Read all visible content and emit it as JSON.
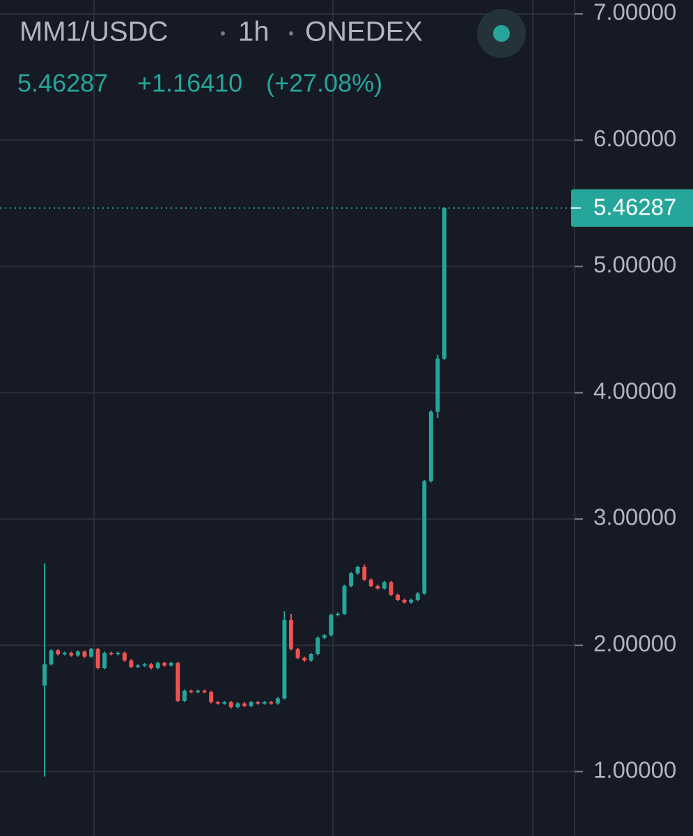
{
  "chart_data": {
    "type": "candlestick",
    "title": "MM1/USDC",
    "interval": "1h",
    "exchange": "ONEDEX",
    "last_price": 5.46287,
    "change": "+1.16410",
    "change_percent": "(+27.08%)",
    "up_color": "#26a69a",
    "down_color": "#ef5350",
    "grid": true,
    "ylim": [
      0.49,
      7.11
    ],
    "yticks": [
      {
        "value": 1,
        "label": "1.00000"
      },
      {
        "value": 2,
        "label": "2.00000"
      },
      {
        "value": 3,
        "label": "3.00000"
      },
      {
        "value": 4,
        "label": "4.00000"
      },
      {
        "value": 5,
        "label": "5.00000"
      },
      {
        "value": 6,
        "label": "6.00000"
      },
      {
        "value": 7,
        "label": "7.00000"
      }
    ],
    "open": [
      1.68,
      1.85,
      1.96,
      1.93,
      1.94,
      1.92,
      1.95,
      1.91,
      1.97,
      1.82,
      1.94,
      1.93,
      1.94,
      1.88,
      1.83,
      1.84,
      1.85,
      1.82,
      1.86,
      1.84,
      1.86,
      1.56,
      1.64,
      1.63,
      1.64,
      1.63,
      1.55,
      1.54,
      1.55,
      1.51,
      1.54,
      1.52,
      1.55,
      1.54,
      1.55,
      1.54,
      1.58,
      2.2,
      1.97,
      1.9,
      1.88,
      1.93,
      2.06,
      2.08,
      2.24,
      2.25,
      2.47,
      2.57,
      2.62,
      2.52,
      2.47,
      2.45,
      2.5,
      2.4,
      2.36,
      2.34,
      2.36,
      2.41,
      3.3,
      3.85,
      4.27
    ],
    "high": [
      2.65,
      1.97,
      1.97,
      1.95,
      1.95,
      1.96,
      1.96,
      1.98,
      1.98,
      1.95,
      1.95,
      1.95,
      1.95,
      1.89,
      1.85,
      1.86,
      1.86,
      1.87,
      1.87,
      1.87,
      1.87,
      1.65,
      1.65,
      1.65,
      1.65,
      1.64,
      1.56,
      1.56,
      1.56,
      1.55,
      1.55,
      1.56,
      1.56,
      1.56,
      1.56,
      1.59,
      2.27,
      2.25,
      1.98,
      1.91,
      1.94,
      2.07,
      2.09,
      2.25,
      2.26,
      2.48,
      2.58,
      2.63,
      2.64,
      2.53,
      2.48,
      2.51,
      2.51,
      2.41,
      2.37,
      2.37,
      2.42,
      3.31,
      3.86,
      4.3,
      5.47
    ],
    "low": [
      0.96,
      1.84,
      1.92,
      1.92,
      1.91,
      1.91,
      1.9,
      1.9,
      1.81,
      1.81,
      1.92,
      1.92,
      1.87,
      1.82,
      1.82,
      1.83,
      1.81,
      1.81,
      1.83,
      1.83,
      1.55,
      1.55,
      1.62,
      1.62,
      1.62,
      1.54,
      1.53,
      1.53,
      1.5,
      1.5,
      1.51,
      1.51,
      1.53,
      1.53,
      1.53,
      1.53,
      1.57,
      1.96,
      1.89,
      1.87,
      1.87,
      1.92,
      2.05,
      2.07,
      2.23,
      2.24,
      2.46,
      2.56,
      2.51,
      2.46,
      2.44,
      2.44,
      2.39,
      2.35,
      2.33,
      2.33,
      2.35,
      2.4,
      3.29,
      3.8,
      4.26
    ],
    "close": [
      1.85,
      1.96,
      1.93,
      1.94,
      1.92,
      1.95,
      1.91,
      1.97,
      1.82,
      1.94,
      1.93,
      1.94,
      1.88,
      1.83,
      1.84,
      1.85,
      1.82,
      1.86,
      1.84,
      1.86,
      1.56,
      1.64,
      1.63,
      1.64,
      1.63,
      1.55,
      1.54,
      1.55,
      1.51,
      1.54,
      1.52,
      1.55,
      1.54,
      1.55,
      1.54,
      1.58,
      2.2,
      1.97,
      1.9,
      1.88,
      1.93,
      2.06,
      2.08,
      2.24,
      2.25,
      2.47,
      2.57,
      2.62,
      2.52,
      2.47,
      2.45,
      2.5,
      2.4,
      2.36,
      2.34,
      2.36,
      2.41,
      3.3,
      3.85,
      4.27,
      5.46287
    ]
  }
}
